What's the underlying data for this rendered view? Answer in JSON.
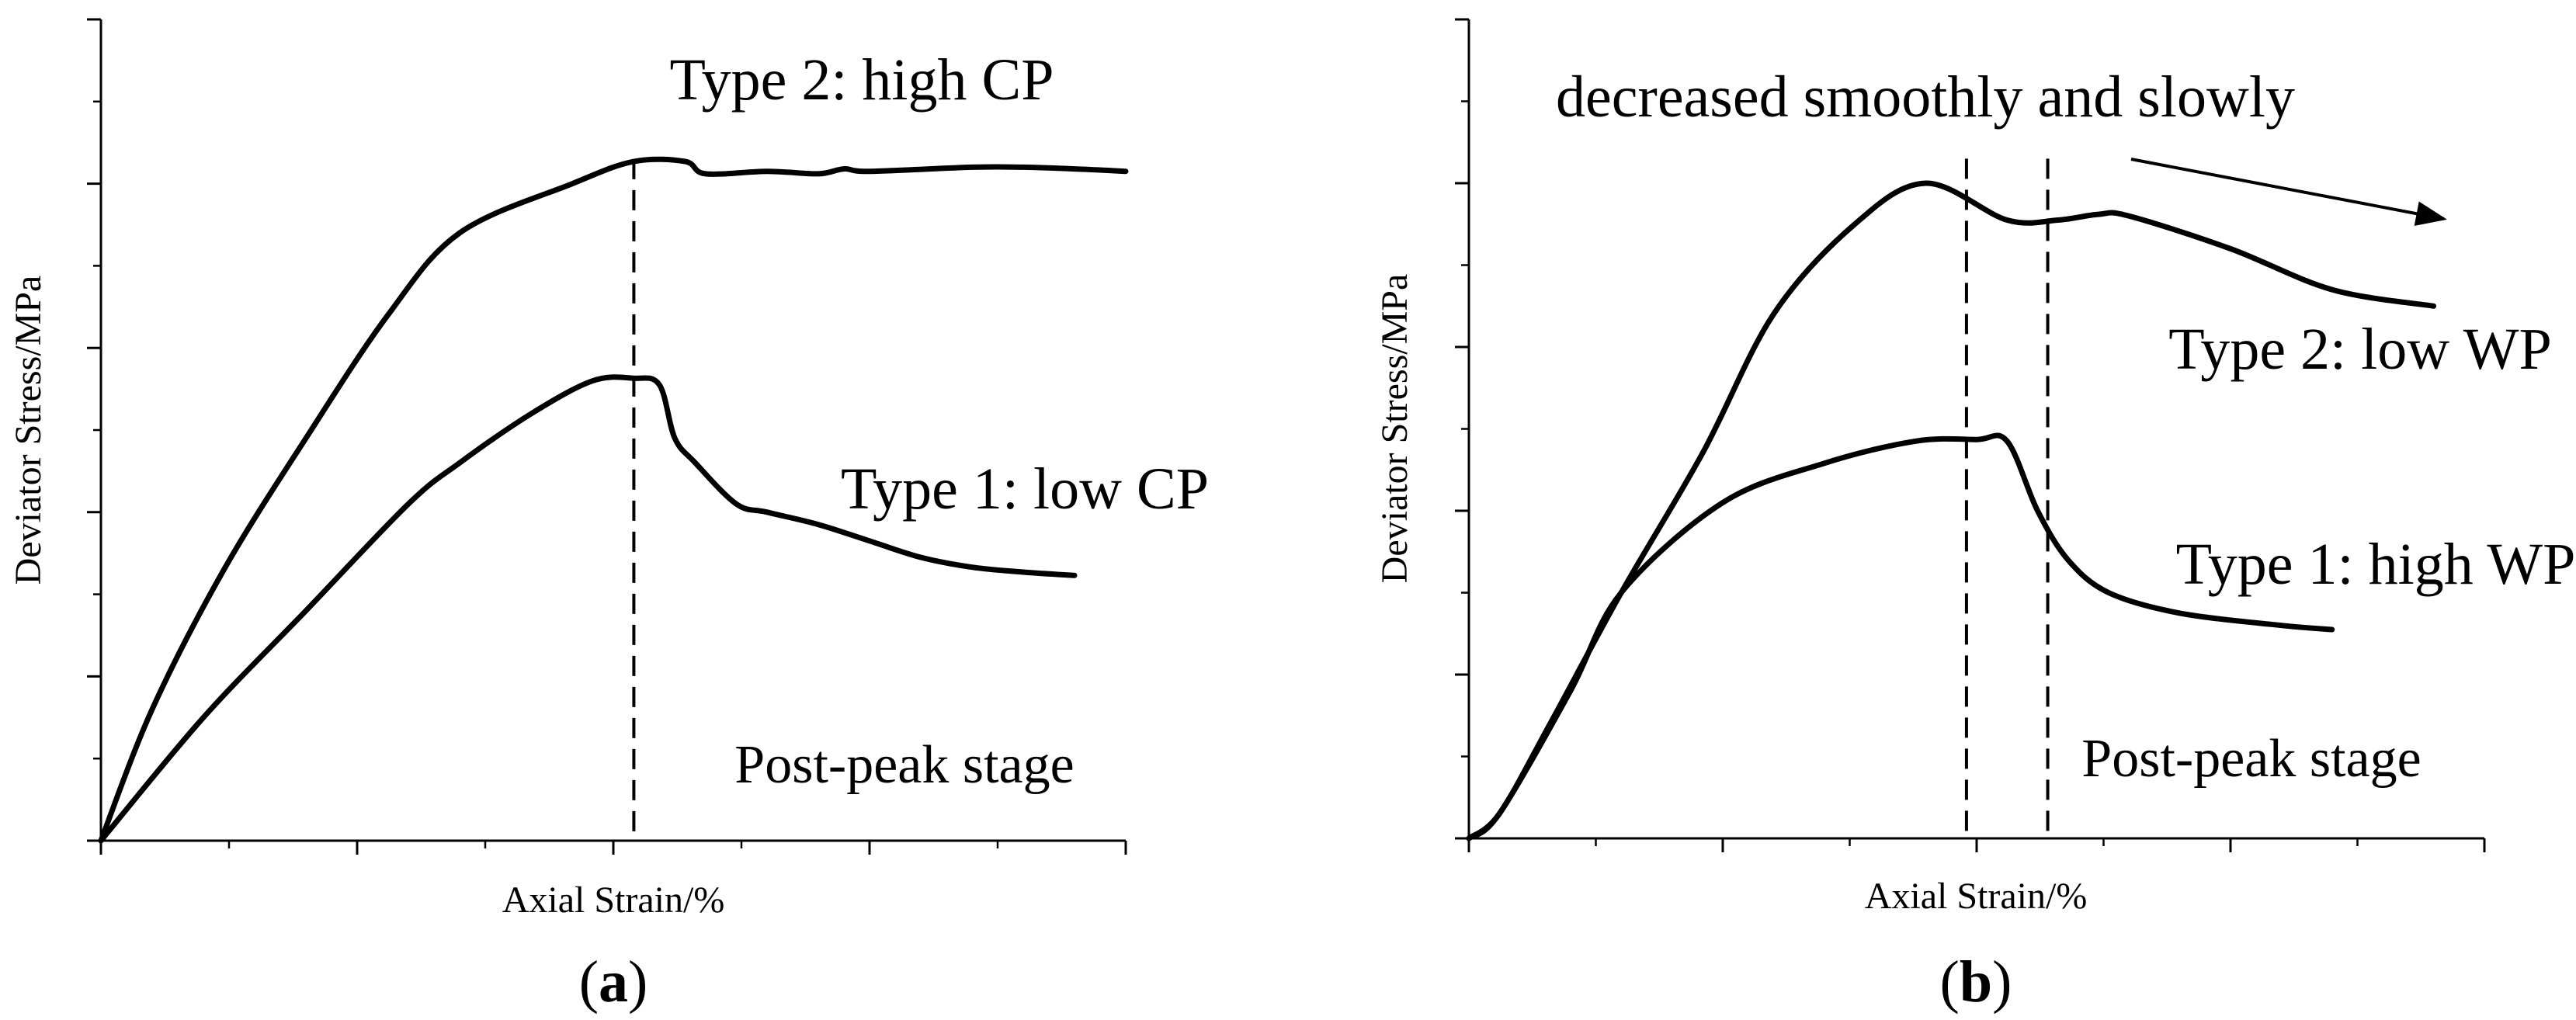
{
  "chart_data": [
    {
      "type": "line",
      "panel_label": "a",
      "xlabel": "Axial Strain/%",
      "ylabel": "Deviator Stress/MPa",
      "xlim": [
        0,
        10
      ],
      "ylim": [
        0,
        10
      ],
      "x_major_ticks": [
        0,
        2.5,
        5,
        7.5,
        10
      ],
      "x_minor_ticks": [
        1.25,
        3.75,
        6.25,
        8.75
      ],
      "y_major_ticks": [
        0,
        2,
        4,
        6,
        8,
        10
      ],
      "y_minor_ticks": [
        1,
        3,
        5,
        7,
        9
      ],
      "series": [
        {
          "name": "Type 2: high CP",
          "x": [
            0,
            0.5,
            1.2,
            2,
            2.8,
            3.5,
            4.6,
            5.2,
            5.7,
            5.9,
            6.5,
            7.0,
            7.25,
            7.5,
            8.5,
            9.0,
            9.5,
            10.0
          ],
          "y": [
            0,
            1.6,
            3.3,
            4.9,
            6.4,
            7.4,
            8.0,
            8.27,
            8.27,
            8.12,
            8.15,
            8.12,
            8.18,
            8.15,
            8.2,
            8.2,
            8.18,
            8.15
          ]
        },
        {
          "name": "Type 1: low CP",
          "x": [
            0,
            1,
            2,
            3,
            3.5,
            4.2,
            4.8,
            5.2,
            5.45,
            5.6,
            5.8,
            6.2,
            6.5,
            7.0,
            7.5,
            8.0,
            8.5,
            9.0,
            9.5
          ],
          "y": [
            0,
            1.5,
            2.8,
            4.1,
            4.6,
            5.2,
            5.6,
            5.63,
            5.55,
            4.9,
            4.6,
            4.1,
            4.0,
            3.85,
            3.65,
            3.45,
            3.33,
            3.27,
            3.23
          ]
        }
      ],
      "vlines": [
        5.2
      ],
      "annotations": [
        "Post-peak stage"
      ]
    },
    {
      "type": "line",
      "panel_label": "b",
      "xlabel": "Axial Strain/%",
      "ylabel": "Deviator Stress/MPa",
      "xlim": [
        0,
        10
      ],
      "ylim": [
        0,
        10
      ],
      "x_major_ticks": [
        0,
        2.5,
        5,
        7.5,
        10
      ],
      "x_minor_ticks": [
        1.25,
        3.75,
        6.25,
        8.75
      ],
      "y_major_ticks": [
        0,
        2,
        4,
        6,
        8,
        10
      ],
      "y_minor_ticks": [
        1,
        3,
        5,
        7,
        9
      ],
      "series": [
        {
          "name": "Type 2: low WP",
          "x": [
            0,
            0.3,
            0.8,
            1.5,
            2.3,
            3.0,
            3.8,
            4.5,
            5.3,
            5.8,
            6.2,
            6.5,
            7.5,
            8.5,
            9.5
          ],
          "y": [
            0,
            0.3,
            1.4,
            3.0,
            4.7,
            6.4,
            7.5,
            8.0,
            7.55,
            7.55,
            7.62,
            7.6,
            7.2,
            6.7,
            6.5
          ]
        },
        {
          "name": "Type 1: high WP",
          "x": [
            0,
            0.3,
            1.0,
            1.5,
            2.5,
            3.5,
            4.4,
            5.0,
            5.3,
            5.6,
            5.9,
            6.3,
            7.0,
            8.0,
            8.5
          ],
          "y": [
            0,
            0.3,
            1.8,
            3.0,
            4.1,
            4.58,
            4.85,
            4.87,
            4.85,
            4.0,
            3.4,
            3.0,
            2.75,
            2.6,
            2.55
          ]
        }
      ],
      "vlines": [
        4.9,
        5.7
      ],
      "annotations": [
        "Post-peak stage",
        "decreased smoothly and slowly"
      ]
    }
  ]
}
